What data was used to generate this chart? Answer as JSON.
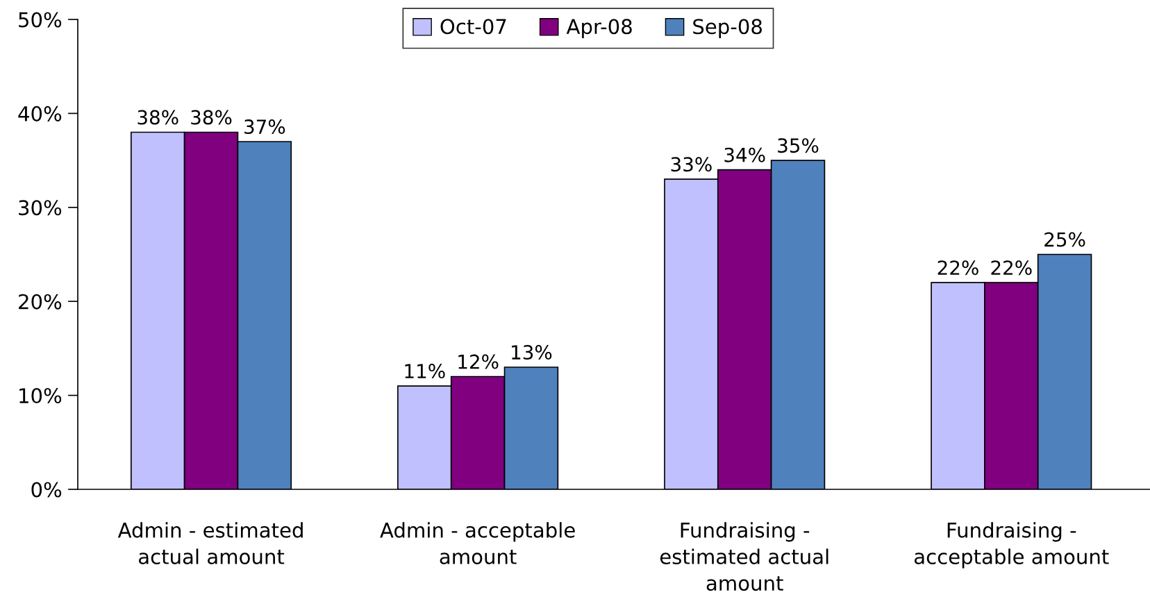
{
  "chart_data": {
    "type": "bar",
    "categories": [
      "Admin - estimated\nactual amount",
      "Admin - acceptable\namount",
      "Fundraising -\nestimated actual\namount",
      "Fundraising -\nacceptable amount"
    ],
    "series": [
      {
        "name": "Oct-07",
        "color": "#c0c0ff",
        "values": [
          38,
          11,
          33,
          22
        ],
        "value_labels": [
          "38%",
          "11%",
          "33%",
          "22%"
        ]
      },
      {
        "name": "Apr-08",
        "color": "#800080",
        "values": [
          38,
          12,
          34,
          22
        ],
        "value_labels": [
          "38%",
          "12%",
          "34%",
          "22%"
        ]
      },
      {
        "name": "Sep-08",
        "color": "#4f81bd",
        "values": [
          37,
          13,
          35,
          25
        ],
        "value_labels": [
          "37%",
          "13%",
          "35%",
          "25%"
        ]
      }
    ],
    "ylim": [
      0,
      50
    ],
    "yticks": [
      {
        "value": 0,
        "label": "0%"
      },
      {
        "value": 10,
        "label": "10%"
      },
      {
        "value": 20,
        "label": "20%"
      },
      {
        "value": 30,
        "label": "30%"
      },
      {
        "value": 40,
        "label": "40%"
      },
      {
        "value": 50,
        "label": "50%"
      }
    ],
    "grid": false,
    "legend": "top"
  }
}
